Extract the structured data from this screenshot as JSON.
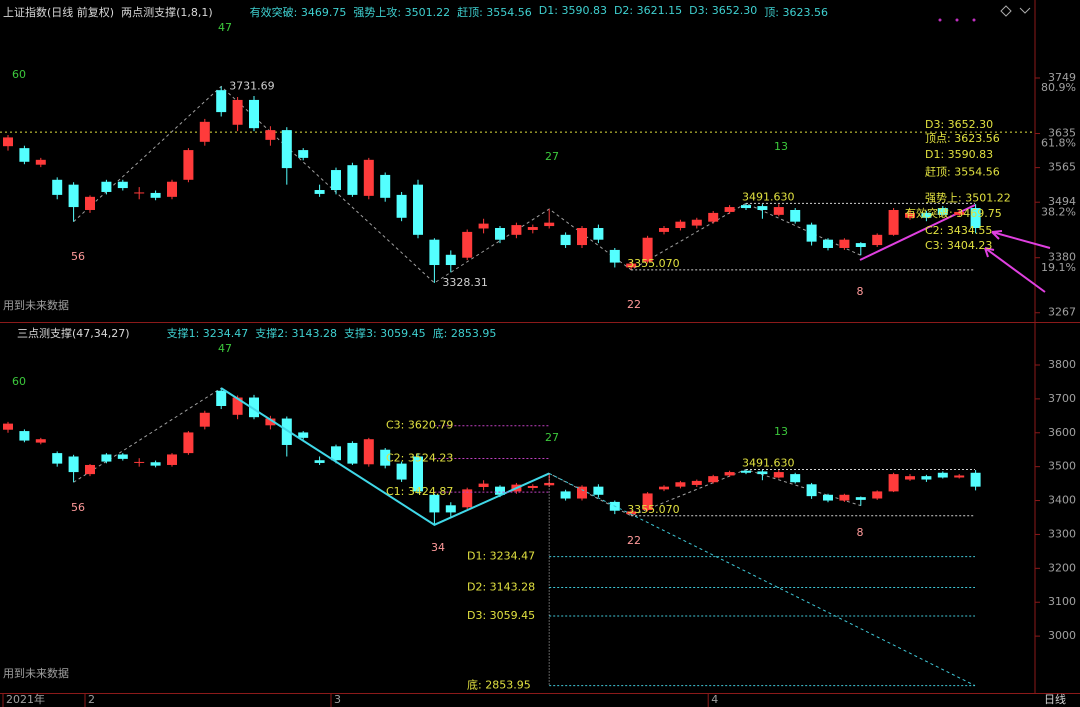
{
  "header": {
    "title": "上证指数(日线 前复权)",
    "period": "日线"
  },
  "chart_data": [
    {
      "type": "candlestick",
      "title": "两点测支撑(1,8,1)",
      "indicators": [
        "有效突破: 3469.75",
        "强势上攻: 3501.22",
        "赶顶: 3554.56",
        "D1: 3590.83",
        "D2: 3621.15",
        "D3: 3652.30",
        "顶: 3623.56"
      ],
      "ylim": [
        3248,
        3864
      ],
      "yticks": [
        3267,
        3380,
        3494,
        3565,
        3635,
        3749
      ],
      "y2lim": [
        0.5,
        103.6
      ],
      "y2ticks": [
        {
          "value": 19.1,
          "label": "19.1%"
        },
        {
          "value": 38.2,
          "label": "38.2%"
        },
        {
          "value": 61.8,
          "label": "61.8%"
        },
        {
          "value": 80.9,
          "label": "80.9%"
        }
      ],
      "colors": {
        "up": "#ff3b3b",
        "down": "#54ffff"
      },
      "candles": {
        "open": [
          3609,
          3605,
          3571,
          3540,
          3530,
          3478,
          3536,
          3536,
          3512,
          3513,
          3505,
          3540,
          3618,
          3724,
          3653,
          3704,
          3622,
          3642,
          3601,
          3519,
          3560,
          3570,
          3507,
          3550,
          3509,
          3530,
          3417,
          3386,
          3380,
          3440,
          3441,
          3427,
          3437,
          3445,
          3427,
          3406,
          3441,
          3396,
          3360,
          3372,
          3433,
          3441,
          3446,
          3454,
          3474,
          3488,
          3486,
          3468,
          3478,
          3448,
          3417,
          3400,
          3410,
          3406,
          3427,
          3462,
          3472,
          3482,
          3468,
          3482
        ],
        "high": [
          3632,
          3610,
          3585,
          3545,
          3535,
          3508,
          3540,
          3540,
          3525,
          3518,
          3540,
          3605,
          3665,
          3731.69,
          3710,
          3712,
          3650,
          3648,
          3605,
          3530,
          3565,
          3575,
          3585,
          3555,
          3515,
          3540,
          3420,
          3395,
          3438,
          3460,
          3445,
          3452,
          3448,
          3480,
          3432,
          3445,
          3448,
          3400,
          3372,
          3425,
          3445,
          3458,
          3462,
          3476,
          3488,
          3491.63,
          3490,
          3490,
          3482,
          3452,
          3420,
          3420,
          3412,
          3430,
          3482,
          3478,
          3476,
          3486,
          3478,
          3490
        ],
        "low": [
          3600,
          3572,
          3566,
          3500,
          3454,
          3472,
          3510,
          3518,
          3500,
          3498,
          3500,
          3535,
          3610,
          3670,
          3640,
          3640,
          3610,
          3530,
          3580,
          3505,
          3510,
          3505,
          3500,
          3495,
          3455,
          3420,
          3328.31,
          3350,
          3375,
          3430,
          3410,
          3420,
          3430,
          3440,
          3400,
          3400,
          3410,
          3360,
          3355.07,
          3368,
          3428,
          3436,
          3440,
          3450,
          3470,
          3478,
          3460,
          3465,
          3450,
          3405,
          3395,
          3396,
          3385,
          3402,
          3425,
          3458,
          3455,
          3465,
          3465,
          3430
        ],
        "close": [
          3627,
          3577,
          3581,
          3509,
          3484,
          3505,
          3515,
          3523,
          3514,
          3503,
          3536,
          3601,
          3659,
          3679,
          3704,
          3646,
          3642,
          3564,
          3585,
          3511,
          3519,
          3509,
          3581,
          3503,
          3462,
          3427,
          3365,
          3365,
          3433,
          3450,
          3417,
          3447,
          3443,
          3452,
          3406,
          3441,
          3417,
          3370,
          3368,
          3421,
          3441,
          3454,
          3458,
          3472,
          3484,
          3482,
          3478,
          3484,
          3454,
          3413,
          3400,
          3417,
          3402,
          3427,
          3478,
          3472,
          3462,
          3468,
          3474,
          3441
        ]
      },
      "dashed_level": 3638,
      "pivots": [
        {
          "value": 3731.69,
          "label": "3731.69"
        },
        {
          "value": 3328.31,
          "label": "3328.31"
        },
        {
          "value": 3355.07,
          "label": "3355.070"
        },
        {
          "value": 3491.63,
          "label": "3491.630"
        }
      ],
      "right_labels": [
        {
          "value": 3652.3,
          "label": "D3: 3652.30"
        },
        {
          "value": 3623.56,
          "label": "顶点: 3623.56"
        },
        {
          "value": 3590.83,
          "label": "D1: 3590.83"
        },
        {
          "value": 3554.56,
          "label": "赶顶: 3554.56"
        },
        {
          "value": 3501.22,
          "label": "强势上: 3501.22"
        },
        {
          "value": 3469.75,
          "label": "有效突破: 3469.75"
        },
        {
          "value": 3434.55,
          "label": "C2: 3434.55"
        },
        {
          "value": 3404.23,
          "label": "C3: 3404.23"
        }
      ],
      "wave_counts": [
        "47",
        "56",
        "27",
        "22",
        "13",
        "8",
        "60"
      ],
      "note": "用到未来数据"
    },
    {
      "type": "candlestick",
      "title": "三点测支撑(47,34,27)",
      "indicators": [
        "支撑1: 3234.47",
        "支撑2: 3143.28",
        "支撑3: 3059.45",
        "底: 2853.95"
      ],
      "ylim": [
        2841,
        3918
      ],
      "yticks": [
        3000,
        3100,
        3200,
        3300,
        3400,
        3500,
        3600,
        3700,
        3800
      ],
      "levels": [
        {
          "value": 3620.79,
          "label": "C3: 3620.79"
        },
        {
          "value": 3524.23,
          "label": "C2: 3524.23"
        },
        {
          "value": 3424.87,
          "label": "C1: 3424.87"
        },
        {
          "value": 3234.47,
          "label": "D1: 3234.47"
        },
        {
          "value": 3143.28,
          "label": "D2: 3143.28"
        },
        {
          "value": 3059.45,
          "label": "D3: 3059.45"
        },
        {
          "value": 2853.95,
          "label": "底: 2853.95"
        }
      ],
      "pivots": [
        {
          "value": 3491.63,
          "label": "3491.630"
        },
        {
          "value": 3355.07,
          "label": "3355.070"
        }
      ],
      "wave_counts": [
        "47",
        "56",
        "34",
        "27",
        "22",
        "13",
        "8",
        "60"
      ],
      "categories": [
        "2021年",
        null,
        null,
        null,
        null,
        "2",
        null,
        null,
        null,
        null,
        null,
        null,
        null,
        null,
        null,
        null,
        null,
        null,
        null,
        null,
        "3",
        null,
        null,
        null,
        null,
        null,
        null,
        null,
        null,
        null,
        null,
        null,
        null,
        null,
        null,
        null,
        null,
        null,
        null,
        null,
        null,
        null,
        null,
        "4",
        null,
        null,
        null,
        null,
        null,
        null,
        null,
        null,
        null,
        null,
        null,
        null,
        null,
        null,
        null,
        null
      ],
      "note": "用到未来数据"
    }
  ]
}
